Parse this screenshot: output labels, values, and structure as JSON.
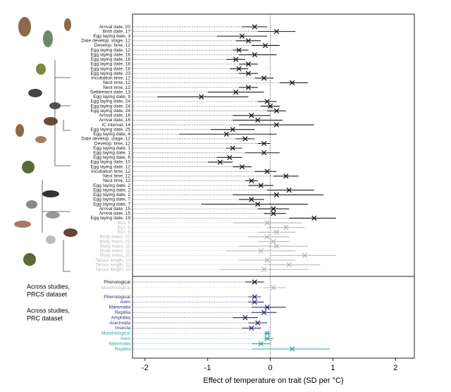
{
  "chart_data": {
    "type": "forest",
    "xlabel": "Effect of temperature on trait (SD per °C)",
    "xlim": [
      -2.2,
      2.3
    ],
    "xticks": [
      -2,
      -1,
      0,
      1,
      2
    ],
    "annotations": [
      [
        "Across studies,",
        "PRCS dataset"
      ],
      [
        "Across studies,",
        "PRC dataset"
      ]
    ],
    "series": [
      {
        "color": "#1a1a1a",
        "categories": [
          "Arrival date, 20",
          "Birth date, 17",
          "Egg laying date, 3",
          "Date develop. stage, 12",
          "Develop. time, 12",
          "Egg laying date, 12",
          "Egg laying date, 16",
          "Egg laying date, 18",
          "Egg laying date, 18",
          "Egg laying date, 18",
          "Egg laying date, 23",
          "Incubation time, 12",
          "Nest time, 12",
          "Nest time, 12",
          "Settlement date, 13",
          "Egg laying date, 9",
          "Egg laying date, 24",
          "Egg laying date, 24",
          "Egg laying date, 24",
          "Arrival date, 16",
          "Arrival date, 16",
          "IC interval, 14",
          "Egg laying date, 25",
          "Egg laying date, 4",
          "Date develop. stage, 12",
          "Develop. time, 12",
          "Egg laying date, 1",
          "Egg laying date, 1",
          "Egg laying date, 6",
          "Egg laying date, 10",
          "Egg laying date, 12",
          "Incubation time, 12",
          "Nest time, 12",
          "Nest time, 12",
          "Egg laying date, 2",
          "Egg laying date, 2",
          "Egg laying date, 2",
          "Egg laying date, 7",
          "Egg laying date, 7",
          "Arrival date, 15",
          "Arrival date, 15",
          "Egg laying date, 19"
        ],
        "values": [
          -0.25,
          0.1,
          -0.45,
          -0.35,
          -0.08,
          -0.5,
          -0.25,
          -0.55,
          -0.35,
          -0.5,
          -0.35,
          -0.1,
          0.35,
          -0.35,
          -0.55,
          -1.1,
          -0.05,
          0.0,
          0.1,
          -0.3,
          -0.2,
          0.1,
          -0.6,
          -0.7,
          -0.4,
          -0.1,
          -0.6,
          -0.1,
          -0.65,
          -0.8,
          -0.45,
          -0.05,
          0.25,
          -0.3,
          -0.15,
          0.3,
          0.1,
          -0.3,
          -0.2,
          0.05,
          0.05,
          0.7
        ],
        "lower": [
          -0.45,
          -0.2,
          -0.85,
          -0.55,
          -0.3,
          -0.6,
          -0.5,
          -0.7,
          -0.5,
          -0.65,
          -0.5,
          -0.25,
          0.15,
          -0.5,
          -1.0,
          -1.8,
          -0.2,
          -0.15,
          -0.05,
          -0.6,
          -0.6,
          -0.5,
          -0.95,
          -1.45,
          -0.55,
          -0.2,
          -0.7,
          -0.4,
          -0.85,
          -1.0,
          -0.6,
          -0.25,
          0.05,
          -0.4,
          -0.35,
          -0.05,
          -0.6,
          -0.5,
          -1.1,
          -0.2,
          -0.1,
          0.3
        ],
        "upper": [
          -0.05,
          0.4,
          -0.05,
          -0.15,
          0.15,
          -0.35,
          0.1,
          -0.4,
          -0.2,
          -0.35,
          -0.2,
          0.05,
          0.6,
          -0.2,
          -0.1,
          -0.35,
          0.1,
          0.15,
          0.25,
          0.0,
          0.2,
          0.7,
          -0.25,
          0.1,
          -0.25,
          0.0,
          -0.45,
          0.15,
          -0.45,
          -0.6,
          -0.3,
          0.1,
          0.45,
          -0.2,
          0.05,
          0.7,
          0.85,
          -0.1,
          0.6,
          0.3,
          0.25,
          1.05
        ]
      },
      {
        "color": "#b5b5b5",
        "categories": [
          "BCI, 5",
          "BCI, 5",
          "BCI, 5",
          "Body mass, 22",
          "Body mass, 22",
          "Body mass, 11",
          "Body mass, 11",
          "Body mass, 11",
          "Tarsus length, 11",
          "Tarsus length, 11",
          "Tarsus length, 11"
        ],
        "values": [
          -0.05,
          0.25,
          0.1,
          -0.05,
          0.05,
          0.1,
          -0.15,
          0.55,
          -0.05,
          0.3,
          -0.1
        ],
        "lower": [
          -0.6,
          -0.05,
          -0.2,
          -0.35,
          -0.2,
          -0.5,
          -0.7,
          0.0,
          -0.5,
          -0.1,
          -0.8
        ],
        "upper": [
          0.5,
          0.55,
          0.4,
          0.3,
          0.3,
          0.6,
          0.4,
          1.05,
          0.4,
          0.8,
          0.6
        ]
      },
      {
        "color": "#1a1a1a",
        "categories": [
          "Phenological"
        ],
        "values": [
          -0.25
        ],
        "lower": [
          -0.4
        ],
        "upper": [
          -0.1
        ]
      },
      {
        "color": "#b5b5b5",
        "categories": [
          "Morphological"
        ],
        "values": [
          0.05
        ],
        "lower": [
          -0.1
        ],
        "upper": [
          0.25
        ]
      },
      {
        "color": "#2e2a7a",
        "categories": [
          "Phenological",
          "Aves",
          "Mammalia",
          "Reptilia",
          "Amphibia",
          "Arachnida",
          "Insecta"
        ],
        "values": [
          -0.25,
          -0.25,
          -0.05,
          -0.1,
          -0.4,
          -0.2,
          -0.3
        ],
        "lower": [
          -0.35,
          -0.35,
          -0.3,
          -0.3,
          -0.6,
          -0.35,
          -0.45
        ],
        "upper": [
          -0.15,
          -0.1,
          0.25,
          0.1,
          -0.2,
          -0.05,
          -0.15
        ]
      },
      {
        "color": "#2aa3a8",
        "categories": [
          "Morphological",
          "Aves",
          "Mammalia",
          "Reptilia"
        ],
        "values": [
          -0.05,
          -0.05,
          -0.15,
          0.35
        ],
        "lower": [
          -0.1,
          -0.1,
          -0.3,
          -0.3
        ],
        "upper": [
          0.0,
          0.05,
          0.0,
          0.95
        ]
      }
    ]
  }
}
